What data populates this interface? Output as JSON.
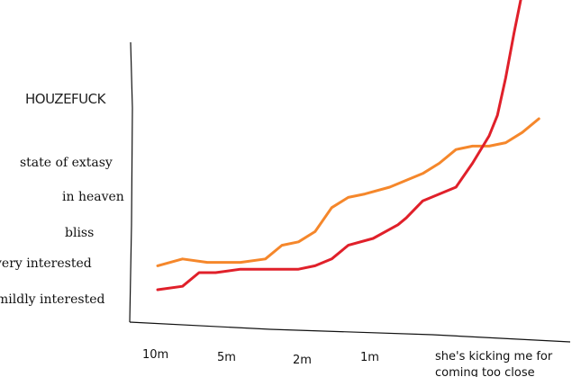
{
  "chart_data": {
    "type": "line",
    "title": "",
    "xlabel": "",
    "ylabel": "",
    "y_categories": [
      "mildly interested",
      "very interested",
      "bliss",
      "in heaven",
      "state of extasy",
      "HOUZEFUCK"
    ],
    "x_categories": [
      "10m",
      "5m",
      "2m",
      "1m",
      "she's kicking me for coming too close"
    ],
    "grid": false,
    "legend": "none",
    "series": [
      {
        "color": "#f5872b",
        "x": [
          0.0,
          0.3,
          0.6,
          1.0,
          1.3,
          1.5,
          1.7,
          1.9,
          2.1,
          2.3,
          2.5,
          2.8,
          3.0,
          3.2,
          3.4,
          3.6,
          3.8,
          4.0,
          4.2,
          4.4,
          4.6
        ],
        "y": [
          1.0,
          1.2,
          1.1,
          1.1,
          1.2,
          1.6,
          1.7,
          2.0,
          2.7,
          3.0,
          3.1,
          3.3,
          3.5,
          3.7,
          4.0,
          4.4,
          4.5,
          4.5,
          4.6,
          4.9,
          5.3
        ]
      },
      {
        "color": "#e0202a",
        "x": [
          0.0,
          0.3,
          0.5,
          0.7,
          1.0,
          1.3,
          1.7,
          1.9,
          2.1,
          2.3,
          2.6,
          2.9,
          3.0,
          3.2,
          3.4,
          3.6,
          3.8,
          4.0,
          4.1,
          4.2,
          4.3,
          4.4
        ],
        "y": [
          0.3,
          0.4,
          0.8,
          0.8,
          0.9,
          0.9,
          0.9,
          1.0,
          1.2,
          1.6,
          1.8,
          2.2,
          2.4,
          2.9,
          3.1,
          3.3,
          4.0,
          4.8,
          5.4,
          6.5,
          7.8,
          9.0
        ]
      }
    ]
  }
}
